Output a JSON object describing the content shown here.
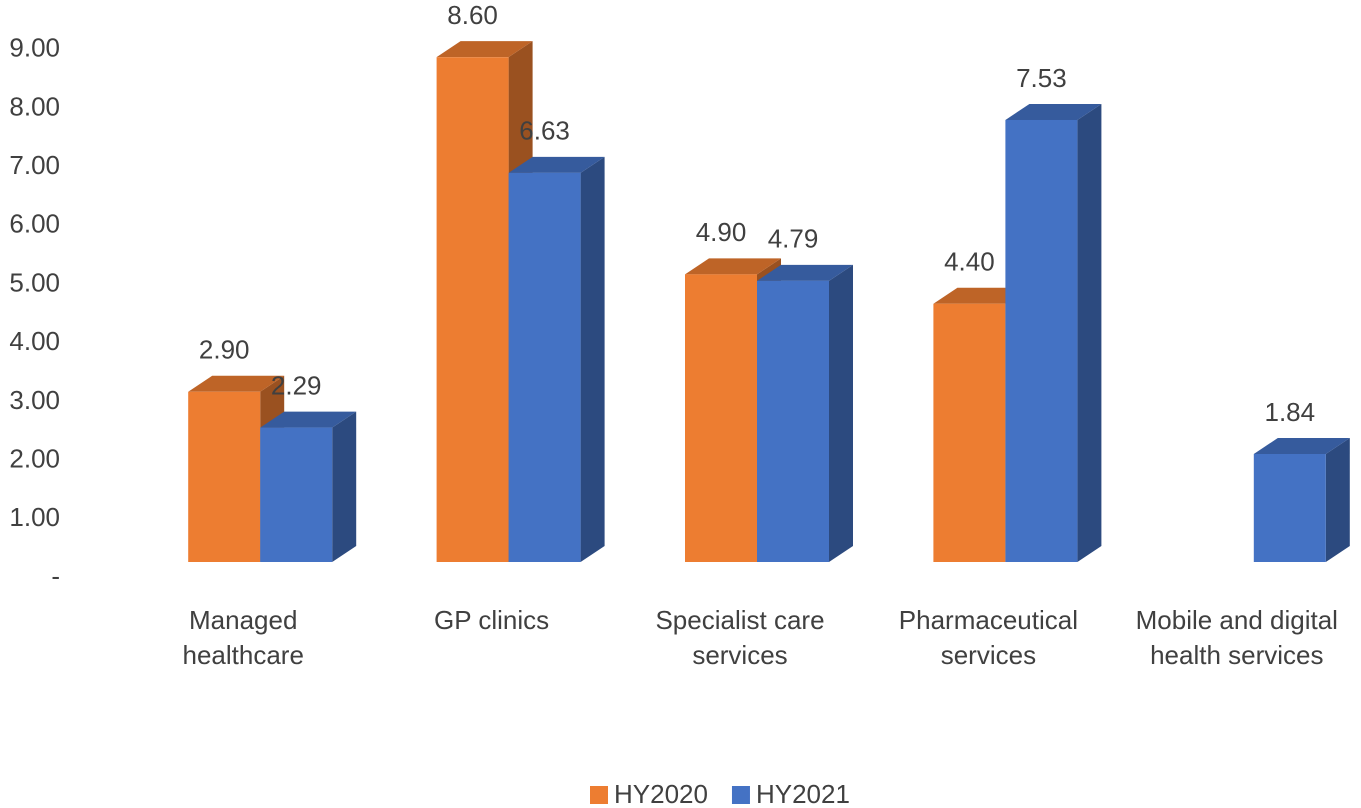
{
  "chart_data": {
    "type": "bar3d",
    "categories": [
      "Managed healthcare",
      "GP clinics",
      "Specialist care services",
      "Pharmaceutical services",
      "Mobile and digital health services"
    ],
    "series": [
      {
        "name": "HY2020",
        "color": "#ed7d31",
        "values": [
          2.9,
          8.6,
          4.9,
          4.4,
          null
        ],
        "value_labels": [
          "2.90",
          "8.60",
          "4.90",
          "4.40",
          null
        ]
      },
      {
        "name": "HY2021",
        "color": "#4472c4",
        "values": [
          2.29,
          6.63,
          4.79,
          7.53,
          1.84
        ],
        "value_labels": [
          "2.29",
          "6.63",
          "4.79",
          "7.53",
          "1.84"
        ]
      }
    ],
    "ylim": [
      0,
      9.5
    ],
    "yticks": [
      {
        "value": 0,
        "label": "-"
      },
      {
        "value": 1,
        "label": "1.00"
      },
      {
        "value": 2,
        "label": "2.00"
      },
      {
        "value": 3,
        "label": "3.00"
      },
      {
        "value": 4,
        "label": "4.00"
      },
      {
        "value": 5,
        "label": "5.00"
      },
      {
        "value": 6,
        "label": "6.00"
      },
      {
        "value": 7,
        "label": "7.00"
      },
      {
        "value": 8,
        "label": "8.00"
      },
      {
        "value": 9,
        "label": "9.00"
      }
    ],
    "grid": false,
    "legend": "bottom"
  }
}
